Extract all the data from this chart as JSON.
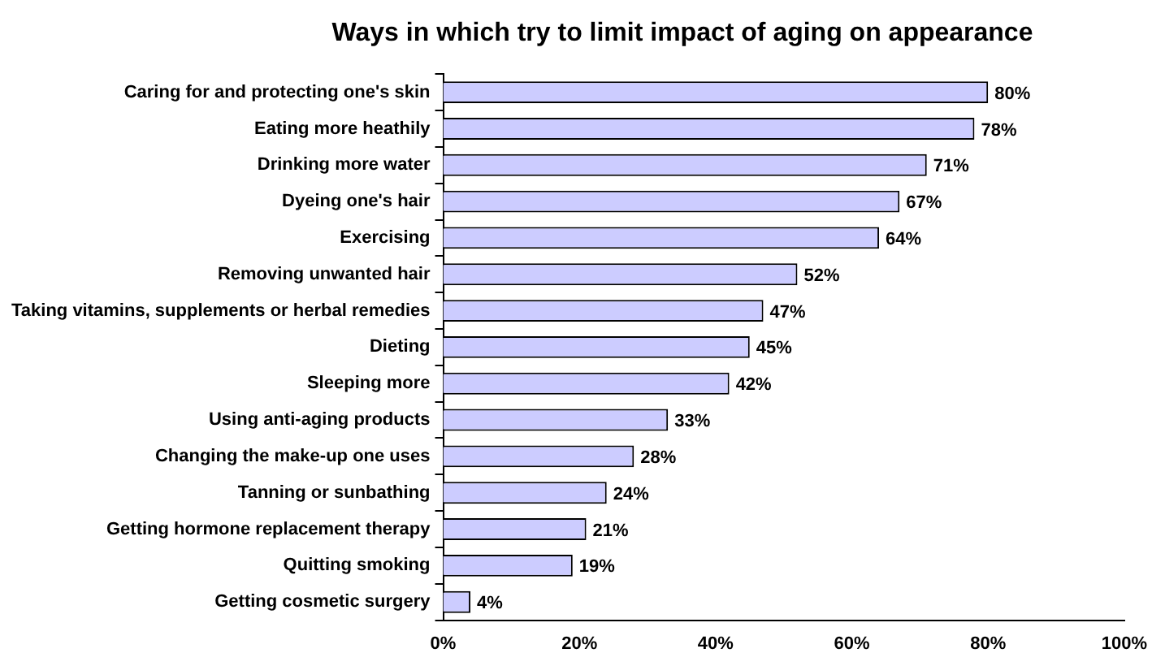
{
  "chart_data": {
    "type": "bar",
    "orientation": "horizontal",
    "title": "Ways in which try to limit impact of aging on appearance",
    "categories": [
      "Caring for and protecting one's skin",
      "Eating more heathily",
      "Drinking more water",
      "Dyeing one's hair",
      "Exercising",
      "Removing unwanted hair",
      "Taking vitamins, supplements or herbal remedies",
      "Dieting",
      "Sleeping more",
      "Using anti-aging products",
      "Changing the make-up one uses",
      "Tanning or sunbathing",
      "Getting hormone replacement therapy",
      "Quitting smoking",
      "Getting cosmetic surgery"
    ],
    "values": [
      80,
      78,
      71,
      67,
      64,
      52,
      47,
      45,
      42,
      33,
      28,
      24,
      21,
      19,
      4
    ],
    "value_labels": [
      "80%",
      "78%",
      "71%",
      "67%",
      "64%",
      "52%",
      "47%",
      "45%",
      "42%",
      "33%",
      "28%",
      "24%",
      "21%",
      "19%",
      "4%"
    ],
    "color": "#ccccff",
    "xlim": [
      0,
      100
    ],
    "xticks": [
      {
        "value": 0,
        "label": "0%"
      },
      {
        "value": 20,
        "label": "20%"
      },
      {
        "value": 40,
        "label": "40%"
      },
      {
        "value": 60,
        "label": "60%"
      },
      {
        "value": 80,
        "label": "80%"
      },
      {
        "value": 100,
        "label": "100%"
      }
    ],
    "grid": false,
    "legend": false
  }
}
